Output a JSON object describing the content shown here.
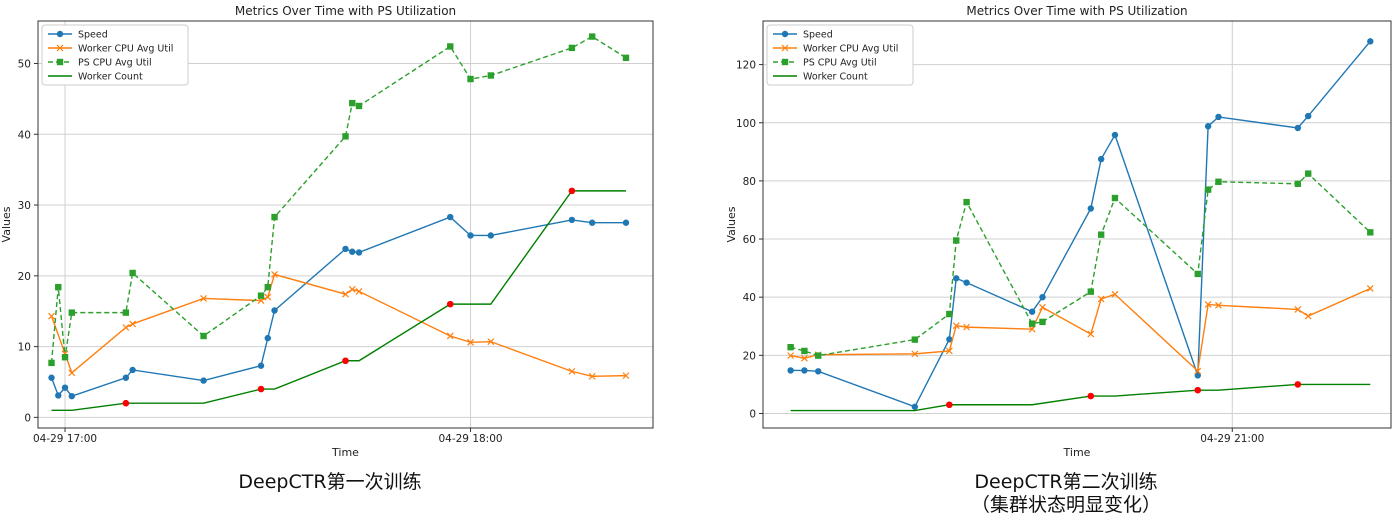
{
  "captions": [
    {
      "lines": [
        "DeepCTR第一次训练"
      ]
    },
    {
      "lines": [
        "DeepCTR第二次训练",
        "（集群状态明显变化）"
      ]
    }
  ],
  "colors": {
    "speed": "#1f77b4",
    "worker_cpu": "#ff7f0e",
    "ps_cpu": "#2ca02c",
    "worker_count": "#008000",
    "scale_marker": "#ff0000"
  },
  "chart_data": [
    {
      "type": "line",
      "title": "Metrics Over Time with PS Utilization",
      "xlabel": "Time",
      "ylabel": "Values",
      "x_ticks": [
        {
          "t": 0,
          "label": "04-29 17:00"
        },
        {
          "t": 60,
          "label": "04-29 18:00"
        }
      ],
      "xlim": [
        -4,
        87
      ],
      "ylim": [
        -1.5,
        56
      ],
      "y_ticks": [
        0,
        10,
        20,
        30,
        40,
        50
      ],
      "grid": true,
      "legend_position": "top-left",
      "series": [
        {
          "name": "Speed",
          "key": "speed",
          "marker": "circle",
          "dash": false,
          "x": [
            -2,
            -1,
            0,
            1,
            9,
            10,
            20.5,
            29,
            30,
            31,
            41.5,
            42.5,
            43.5,
            57,
            60,
            63,
            75,
            78,
            83
          ],
          "y": [
            5.6,
            3.1,
            4.2,
            3.0,
            5.6,
            6.7,
            5.2,
            7.3,
            11.2,
            15.1,
            23.8,
            23.4,
            23.3,
            28.3,
            25.7,
            25.7,
            27.9,
            27.5,
            27.5
          ]
        },
        {
          "name": "Worker CPU Avg Util",
          "key": "worker_cpu",
          "marker": "x",
          "dash": false,
          "x": [
            -2,
            0,
            1,
            9,
            10,
            20.5,
            29,
            30,
            31,
            41.5,
            42.5,
            43.5,
            57,
            60,
            63,
            75,
            78,
            83
          ],
          "y": [
            14.3,
            9.0,
            6.3,
            12.7,
            13.2,
            16.8,
            16.5,
            17.0,
            20.2,
            17.4,
            18.1,
            17.8,
            11.5,
            10.6,
            10.7,
            6.5,
            5.8,
            5.9
          ]
        },
        {
          "name": "PS CPU Avg Util",
          "key": "ps_cpu",
          "marker": "square",
          "dash": true,
          "x": [
            -2,
            -1,
            0,
            1,
            9,
            10,
            20.5,
            29,
            30,
            31,
            41.5,
            42.5,
            43.5,
            57,
            60,
            63,
            75,
            78,
            83
          ],
          "y": [
            7.7,
            18.4,
            8.5,
            14.8,
            14.8,
            20.4,
            11.5,
            17.2,
            18.4,
            28.3,
            39.7,
            44.4,
            44.0,
            52.4,
            47.8,
            48.3,
            52.2,
            53.8,
            50.8
          ]
        },
        {
          "name": "Worker Count",
          "key": "worker_count",
          "marker": "none",
          "dash": false,
          "x": [
            -2,
            1,
            9,
            20.5,
            29,
            31,
            41.5,
            43.5,
            57,
            63,
            75,
            83
          ],
          "y": [
            1,
            1,
            2,
            2,
            4,
            4,
            8,
            8,
            16,
            16,
            32,
            32
          ]
        }
      ],
      "scale_events": {
        "x": [
          9,
          29,
          41.5,
          57,
          75
        ],
        "y": [
          2,
          4,
          8,
          16,
          32
        ]
      }
    },
    {
      "type": "line",
      "title": "Metrics Over Time with PS Utilization",
      "xlabel": "Time",
      "ylabel": "Values",
      "x_ticks": [
        {
          "t": 0,
          "label": "04-29 21:00"
        }
      ],
      "xlim": [
        -68,
        23
      ],
      "ylim": [
        -5,
        135
      ],
      "y_ticks": [
        0,
        20,
        40,
        60,
        80,
        100,
        120
      ],
      "grid": true,
      "legend_position": "top-left",
      "series": [
        {
          "name": "Speed",
          "key": "speed",
          "marker": "circle",
          "dash": false,
          "x": [
            -64,
            -62,
            -60,
            -46,
            -41,
            -40,
            -38.5,
            -29,
            -27.5,
            -20.5,
            -19,
            -17,
            -5,
            -3.5,
            -2,
            9.5,
            11,
            20
          ],
          "y": [
            14.8,
            14.8,
            14.5,
            2.3,
            25.5,
            46.5,
            45.0,
            35.0,
            40.0,
            70.5,
            87.5,
            95.8,
            13.1,
            98.8,
            102.0,
            98.2,
            102.3,
            128.0
          ]
        },
        {
          "name": "Worker CPU Avg Util",
          "key": "worker_cpu",
          "marker": "x",
          "dash": false,
          "x": [
            -64,
            -62,
            -60,
            -46,
            -41,
            -40,
            -38.5,
            -29,
            -27.5,
            -20.5,
            -19,
            -17,
            -5,
            -3.5,
            -2,
            9.5,
            11,
            20
          ],
          "y": [
            19.9,
            19.0,
            20.2,
            20.5,
            21.5,
            30.2,
            29.7,
            29.0,
            36.5,
            27.3,
            39.4,
            41.0,
            14.6,
            37.5,
            37.2,
            35.8,
            33.5,
            43.0
          ]
        },
        {
          "name": "PS CPU Avg Util",
          "key": "ps_cpu",
          "marker": "square",
          "dash": true,
          "x": [
            -64,
            -62,
            -60,
            -46,
            -41,
            -40,
            -38.5,
            -29,
            -27.5,
            -20.5,
            -19,
            -17,
            -5,
            -3.5,
            -2,
            9.5,
            11,
            20
          ],
          "y": [
            22.8,
            21.5,
            19.9,
            25.4,
            34.2,
            59.5,
            72.7,
            30.9,
            31.5,
            41.9,
            61.5,
            74.1,
            48.0,
            77.0,
            79.7,
            79.0,
            82.5,
            62.3
          ]
        },
        {
          "name": "Worker Count",
          "key": "worker_count",
          "marker": "none",
          "dash": false,
          "x": [
            -64,
            -46,
            -41,
            -29,
            -20.5,
            -17,
            -5,
            -2,
            9.5,
            20
          ],
          "y": [
            1,
            1,
            3,
            3,
            6,
            6,
            8,
            8,
            10,
            10
          ]
        }
      ],
      "scale_events": {
        "x": [
          -41,
          -20.5,
          -5,
          9.5
        ],
        "y": [
          3,
          6,
          8,
          10
        ]
      }
    }
  ]
}
